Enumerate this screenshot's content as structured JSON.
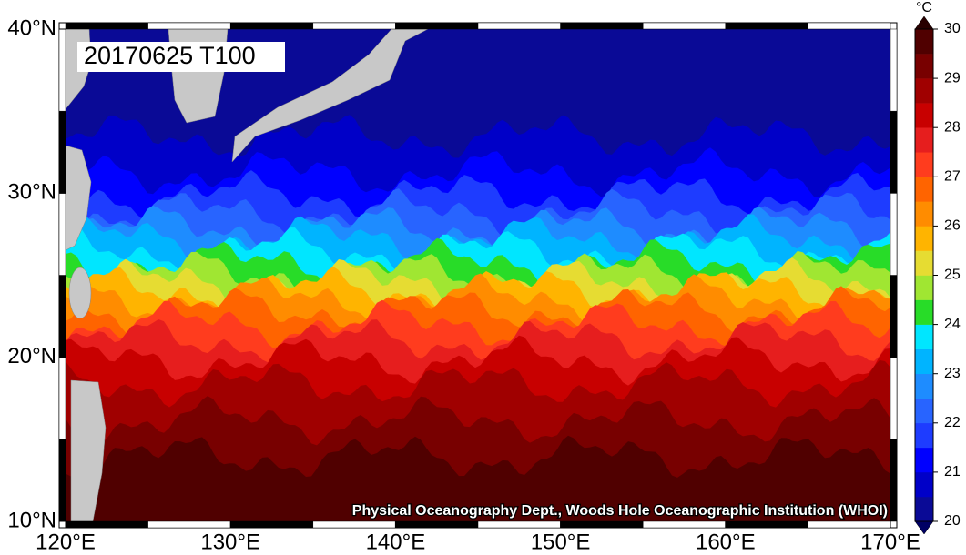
{
  "chart_data": {
    "type": "map",
    "title": "20170625 T100",
    "credit": "Physical Oceanography Dept., Woods Hole Oceanographic Institution (WHOI)",
    "xlim": [
      120,
      170
    ],
    "xticks": [
      {
        "value": 120,
        "label": "120°E"
      },
      {
        "value": 130,
        "label": "130°E"
      },
      {
        "value": 140,
        "label": "140°E"
      },
      {
        "value": 150,
        "label": "150°E"
      },
      {
        "value": 160,
        "label": "160°E"
      },
      {
        "value": 170,
        "label": "170°E"
      }
    ],
    "ylim": [
      10,
      40
    ],
    "yticks": [
      {
        "value": 10,
        "label": "10°N"
      },
      {
        "value": 20,
        "label": "20°N"
      },
      {
        "value": 30,
        "label": "30°N"
      },
      {
        "value": 40,
        "label": "40°N"
      }
    ],
    "colorbar": {
      "unit": "°C",
      "range": [
        20,
        30
      ],
      "ticks": [
        20,
        21,
        22,
        23,
        24,
        25,
        26,
        27,
        28,
        29,
        30
      ],
      "colors": [
        "#0a0a96",
        "#0000c8",
        "#0000ff",
        "#1e3cff",
        "#2864ff",
        "#1e8cff",
        "#00b4ff",
        "#00e6ff",
        "#28dc28",
        "#a0e632",
        "#e6dc32",
        "#ffb400",
        "#ff8c00",
        "#ff6400",
        "#ff3c1e",
        "#e61e1e",
        "#c80000",
        "#a00000",
        "#780000",
        "#500000"
      ],
      "under_color": "#000064",
      "over_color": "#280000"
    }
  }
}
